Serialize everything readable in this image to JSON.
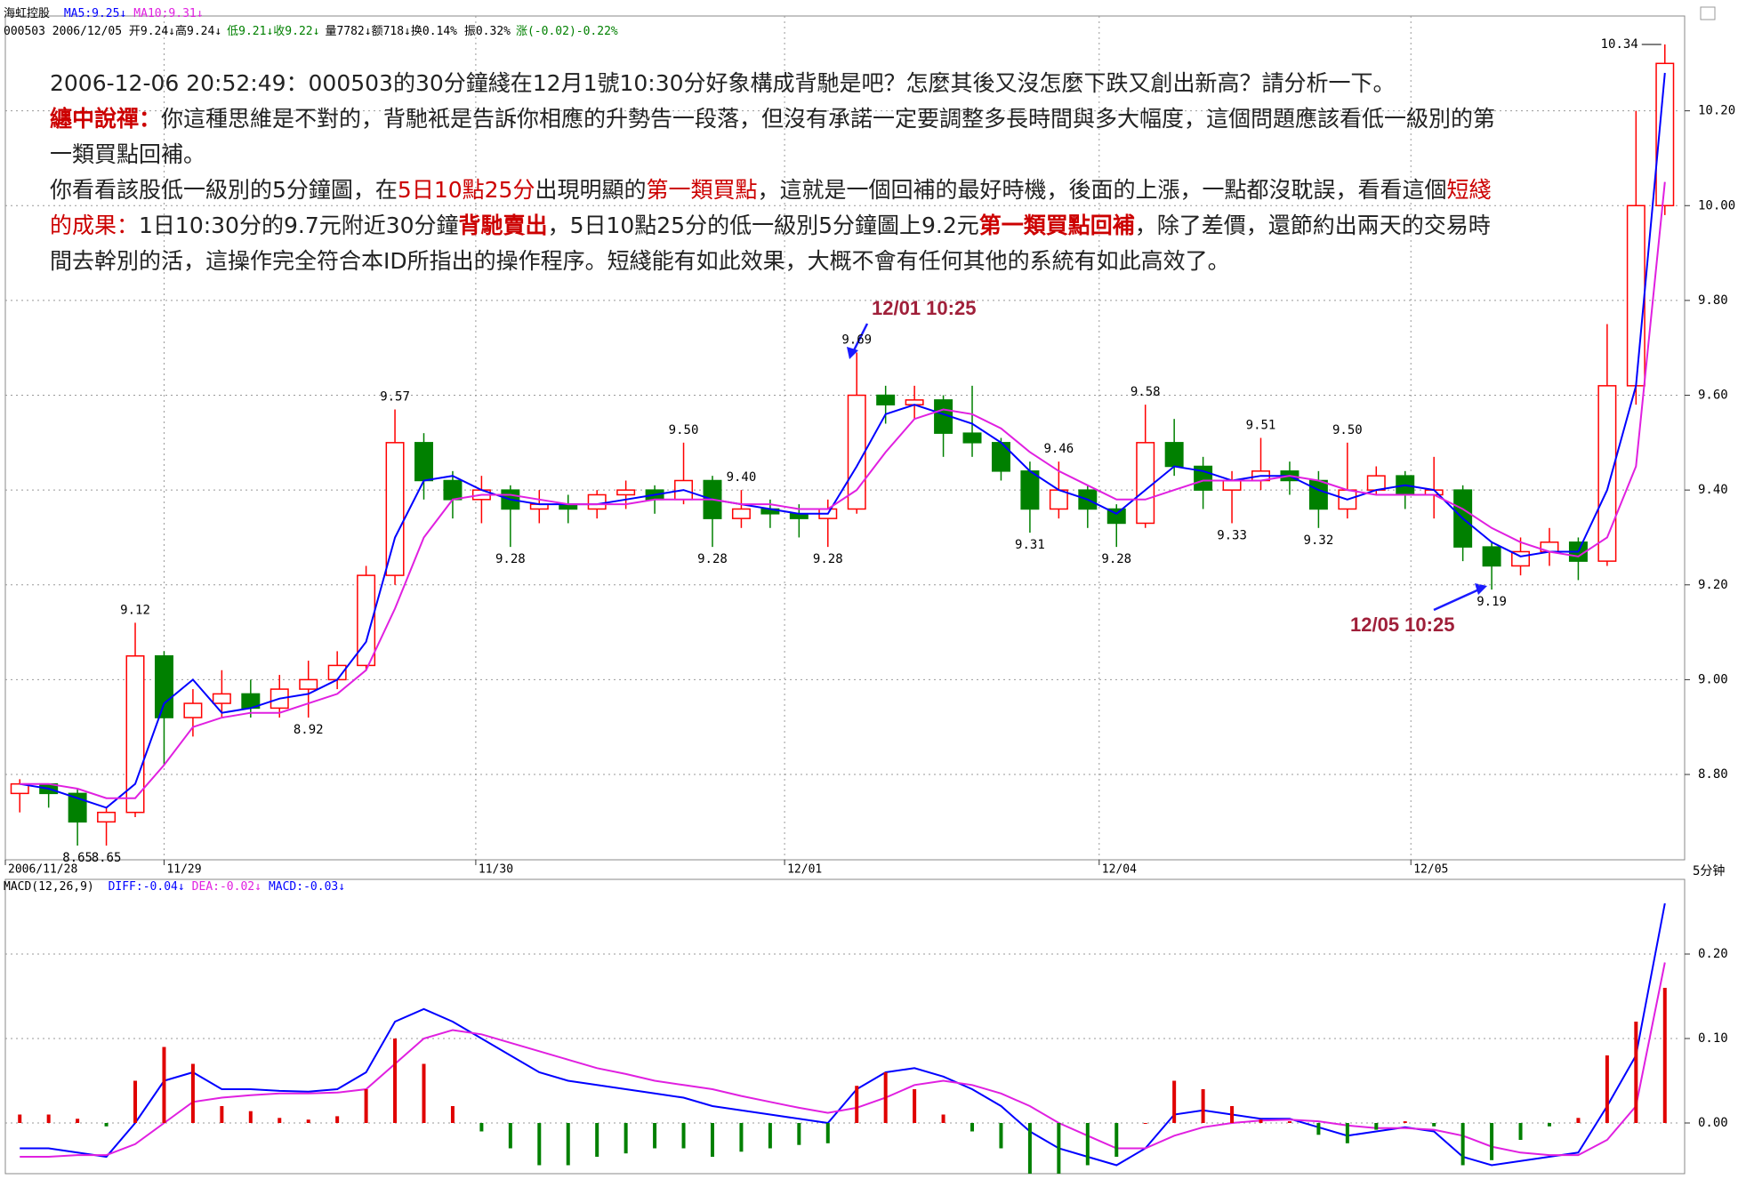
{
  "header": {
    "stock": "海虹控股",
    "info": [
      {
        "text": "000503 2006/12/05 开9.24↓高9.24↓",
        "color": "#000000"
      },
      {
        "text": "低9.21↓收9.22↓",
        "color": "#008000"
      },
      {
        "text": "量7782↓额718↓换0.14% 振0.32%",
        "color": "#000000"
      },
      {
        "text": "涨(-0.02)-0.22%",
        "color": "#008000"
      }
    ],
    "period": "5分钟"
  },
  "note": [
    [
      {
        "text": "2006-12-06 20:52:49：000503的30分鐘綫在12月1號10:30分好象構成背馳是吧？怎麼其後又沒怎麼下跌又創出新高？請分析一下。",
        "color": "#222222",
        "bold": false
      }
    ],
    [
      {
        "text": "纏中說禪：",
        "color": "#cc0000",
        "bold": true
      },
      {
        "text": "你這種思維是不對的，背馳衹是告訴你相應的升勢告一段落，但沒有承諾一定要調整多長時間與多大幅度，這個問題應該看低一級別的第一類買點回補。",
        "color": "#222222",
        "bold": false
      }
    ],
    [
      {
        "text": "你看看該股低一級別的5分鐘圖，在",
        "color": "#222222",
        "bold": false
      },
      {
        "text": "5日10點25分",
        "color": "#cc0000",
        "bold": false
      },
      {
        "text": "出現明顯的",
        "color": "#222222",
        "bold": false
      },
      {
        "text": "第一類買點",
        "color": "#cc0000",
        "bold": false
      },
      {
        "text": "，這就是一個回補的最好時機，後面的上漲，一點都沒耽誤，看看這個",
        "color": "#222222",
        "bold": false
      },
      {
        "text": "短綫的成果：",
        "color": "#cc0000",
        "bold": false
      },
      {
        "text": "1日10:30分的9.7元附近30分鐘",
        "color": "#222222",
        "bold": false
      },
      {
        "text": "背馳賣出",
        "color": "#cc0000",
        "bold": true
      },
      {
        "text": "，5日10點25分的低一級別5分鐘圖上9.2元",
        "color": "#222222",
        "bold": false
      },
      {
        "text": "第一類買點回補",
        "color": "#cc0000",
        "bold": true
      },
      {
        "text": "，除了差價，還節約出兩天的交易時間去幹別的活，這操作完全符合本ID所指出的操作程序。短綫能有如此效果，大概不會有任何其他的系統有如此高效了。",
        "color": "#222222",
        "bold": false
      }
    ]
  ],
  "callouts": [
    "12/01 10:25",
    "12/05 10:25"
  ],
  "chart_data": [
    {
      "type": "candlestick",
      "up_color": "#ff0000",
      "down_color": "#008000",
      "grid": true,
      "open": [
        8.76,
        8.78,
        8.76,
        8.7,
        8.72,
        9.05,
        8.92,
        8.95,
        8.97,
        8.94,
        8.98,
        9.0,
        9.03,
        9.22,
        9.5,
        9.42,
        9.38,
        9.4,
        9.36,
        9.37,
        9.36,
        9.39,
        9.4,
        9.38,
        9.42,
        9.34,
        9.36,
        9.35,
        9.34,
        9.36,
        9.6,
        9.58,
        9.59,
        9.52,
        9.5,
        9.44,
        9.36,
        9.4,
        9.36,
        9.33,
        9.5,
        9.45,
        9.4,
        9.42,
        9.44,
        9.42,
        9.36,
        9.4,
        9.43,
        9.39,
        9.4,
        9.28,
        9.24,
        9.27,
        9.29,
        9.25,
        9.62,
        10.0
      ],
      "high": [
        8.79,
        8.78,
        8.77,
        8.73,
        9.12,
        9.06,
        8.98,
        9.02,
        9.0,
        9.01,
        9.04,
        9.06,
        9.24,
        9.57,
        9.52,
        9.44,
        9.43,
        9.41,
        9.4,
        9.39,
        9.4,
        9.42,
        9.41,
        9.5,
        9.43,
        9.4,
        9.38,
        9.37,
        9.38,
        9.69,
        9.62,
        9.62,
        9.6,
        9.62,
        9.51,
        9.46,
        9.46,
        9.41,
        9.37,
        9.58,
        9.55,
        9.47,
        9.44,
        9.51,
        9.46,
        9.44,
        9.5,
        9.45,
        9.44,
        9.47,
        9.41,
        9.29,
        9.3,
        9.32,
        9.3,
        9.75,
        10.2,
        10.34
      ],
      "low": [
        8.72,
        8.73,
        8.65,
        8.65,
        8.71,
        8.82,
        8.88,
        8.92,
        8.92,
        8.92,
        8.92,
        8.98,
        9.02,
        9.2,
        9.38,
        9.34,
        9.33,
        9.28,
        9.33,
        9.33,
        9.34,
        9.36,
        9.35,
        9.37,
        9.28,
        9.32,
        9.32,
        9.3,
        9.28,
        9.35,
        9.54,
        9.55,
        9.47,
        9.47,
        9.42,
        9.31,
        9.34,
        9.32,
        9.28,
        9.32,
        9.43,
        9.36,
        9.33,
        9.4,
        9.39,
        9.32,
        9.34,
        9.39,
        9.36,
        9.34,
        9.25,
        9.19,
        9.22,
        9.24,
        9.21,
        9.24,
        9.58,
        9.98
      ],
      "close": [
        8.78,
        8.76,
        8.7,
        8.72,
        9.05,
        8.92,
        8.95,
        8.97,
        8.94,
        8.98,
        9.0,
        9.03,
        9.22,
        9.5,
        9.42,
        9.38,
        9.4,
        9.36,
        9.37,
        9.36,
        9.39,
        9.4,
        9.38,
        9.42,
        9.34,
        9.36,
        9.35,
        9.34,
        9.36,
        9.6,
        9.58,
        9.59,
        9.52,
        9.5,
        9.44,
        9.36,
        9.4,
        9.36,
        9.33,
        9.5,
        9.45,
        9.4,
        9.42,
        9.44,
        9.42,
        9.36,
        9.4,
        9.43,
        9.39,
        9.4,
        9.28,
        9.24,
        9.27,
        9.29,
        9.25,
        9.62,
        10.0,
        10.3
      ],
      "series": [
        {
          "name": "MA5:9.25↓",
          "color": "#0000ff",
          "values": [
            8.78,
            8.77,
            8.75,
            8.73,
            8.78,
            8.95,
            9.0,
            8.93,
            8.94,
            8.96,
            8.97,
            9.0,
            9.08,
            9.3,
            9.42,
            9.43,
            9.4,
            9.38,
            9.37,
            9.37,
            9.37,
            9.38,
            9.39,
            9.4,
            9.38,
            9.37,
            9.36,
            9.35,
            9.35,
            9.45,
            9.56,
            9.58,
            9.56,
            9.54,
            9.5,
            9.44,
            9.4,
            9.38,
            9.35,
            9.4,
            9.45,
            9.44,
            9.42,
            9.43,
            9.43,
            9.4,
            9.38,
            9.4,
            9.41,
            9.4,
            9.34,
            9.29,
            9.26,
            9.27,
            9.27,
            9.4,
            9.62,
            10.28
          ]
        },
        {
          "name": "MA10:9.31↓",
          "color": "#e020e0",
          "values": [
            8.78,
            8.78,
            8.77,
            8.75,
            8.75,
            8.82,
            8.9,
            8.92,
            8.93,
            8.93,
            8.95,
            8.97,
            9.02,
            9.15,
            9.3,
            9.38,
            9.39,
            9.39,
            9.38,
            9.37,
            9.37,
            9.37,
            9.38,
            9.38,
            9.38,
            9.37,
            9.37,
            9.36,
            9.36,
            9.4,
            9.48,
            9.55,
            9.57,
            9.56,
            9.53,
            9.48,
            9.44,
            9.41,
            9.38,
            9.38,
            9.4,
            9.42,
            9.42,
            9.42,
            9.43,
            9.42,
            9.4,
            9.39,
            9.39,
            9.39,
            9.36,
            9.32,
            9.29,
            9.27,
            9.26,
            9.3,
            9.45,
            10.05
          ]
        }
      ],
      "xlim": [
        0,
        58
      ],
      "xticks": [
        {
          "value": 0,
          "label": "2006/11/28"
        },
        {
          "value": 5.5,
          "label": "11/29"
        },
        {
          "value": 16.3,
          "label": "11/30"
        },
        {
          "value": 27,
          "label": "12/01"
        },
        {
          "value": 37.9,
          "label": "12/04"
        },
        {
          "value": 48.7,
          "label": "12/05"
        }
      ],
      "ylim": [
        8.62,
        10.4
      ],
      "yticks": [
        {
          "value": 8.8,
          "label": "8.80"
        },
        {
          "value": 9,
          "label": "9.00"
        },
        {
          "value": 9.2,
          "label": "9.20"
        },
        {
          "value": 9.4,
          "label": "9.40"
        },
        {
          "value": 9.6,
          "label": "9.60"
        },
        {
          "value": 9.8,
          "label": "9.80"
        },
        {
          "value": 10,
          "label": "10.00"
        },
        {
          "value": 10.2,
          "label": "10.20"
        }
      ],
      "annotations": [
        {
          "x": 2,
          "value": 8.65,
          "label": "8.65"
        },
        {
          "x": 3,
          "value": 8.65,
          "label": "8.65"
        },
        {
          "x": 4,
          "value": 9.12,
          "label": "9.12"
        },
        {
          "x": 10,
          "value": 8.92,
          "label": "8.92"
        },
        {
          "x": 13,
          "value": 9.57,
          "label": "9.57"
        },
        {
          "x": 17,
          "value": 9.28,
          "label": "9.28"
        },
        {
          "x": 23,
          "value": 9.5,
          "label": "9.50"
        },
        {
          "x": 24,
          "value": 9.28,
          "label": "9.28"
        },
        {
          "x": 25,
          "value": 9.4,
          "label": "9.40"
        },
        {
          "x": 28,
          "value": 9.28,
          "label": "9.28"
        },
        {
          "x": 29,
          "value": 9.69,
          "label": "9.69"
        },
        {
          "x": 35,
          "value": 9.31,
          "label": "9.31"
        },
        {
          "x": 36,
          "value": 9.46,
          "label": "9.46"
        },
        {
          "x": 38,
          "value": 9.28,
          "label": "9.28"
        },
        {
          "x": 39,
          "value": 9.58,
          "label": "9.58"
        },
        {
          "x": 42,
          "value": 9.33,
          "label": "9.33"
        },
        {
          "x": 43,
          "value": 9.51,
          "label": "9.51"
        },
        {
          "x": 45,
          "value": 9.32,
          "label": "9.32"
        },
        {
          "x": 46,
          "value": 9.5,
          "label": "9.50"
        },
        {
          "x": 51,
          "value": 9.19,
          "label": "9.19"
        },
        {
          "x": 57,
          "value": 10.34,
          "label": "10.34"
        }
      ]
    },
    {
      "type": "macd",
      "title": "MACD(12,26,9)",
      "grid": true,
      "series": [
        {
          "name": "DIFF:-0.04↓",
          "color": "#0000ff",
          "kind": "line",
          "values": [
            -0.03,
            -0.03,
            -0.035,
            -0.04,
            0.0,
            0.05,
            0.06,
            0.04,
            0.04,
            0.038,
            0.037,
            0.04,
            0.06,
            0.12,
            0.135,
            0.12,
            0.1,
            0.08,
            0.06,
            0.05,
            0.045,
            0.04,
            0.035,
            0.03,
            0.02,
            0.015,
            0.01,
            0.005,
            0.0,
            0.04,
            0.06,
            0.065,
            0.055,
            0.04,
            0.02,
            -0.01,
            -0.03,
            -0.04,
            -0.05,
            -0.03,
            0.01,
            0.015,
            0.01,
            0.005,
            0.005,
            -0.005,
            -0.015,
            -0.01,
            -0.005,
            -0.01,
            -0.04,
            -0.05,
            -0.045,
            -0.04,
            -0.035,
            0.02,
            0.08,
            0.26
          ]
        },
        {
          "name": "DEA:-0.02↓",
          "color": "#e020e0",
          "kind": "line",
          "values": [
            -0.04,
            -0.04,
            -0.038,
            -0.038,
            -0.025,
            0.0,
            0.025,
            0.03,
            0.033,
            0.035,
            0.035,
            0.036,
            0.04,
            0.07,
            0.1,
            0.11,
            0.105,
            0.095,
            0.085,
            0.075,
            0.065,
            0.058,
            0.05,
            0.045,
            0.04,
            0.032,
            0.025,
            0.018,
            0.012,
            0.018,
            0.03,
            0.045,
            0.05,
            0.045,
            0.035,
            0.02,
            0.0,
            -0.015,
            -0.03,
            -0.03,
            -0.015,
            -0.005,
            0.0,
            0.003,
            0.004,
            0.002,
            -0.003,
            -0.006,
            -0.006,
            -0.008,
            -0.015,
            -0.028,
            -0.035,
            -0.038,
            -0.038,
            -0.02,
            0.02,
            0.19
          ]
        },
        {
          "name": "MACD:-0.03↓",
          "color": "#0000ff",
          "kind": "bar",
          "up_color": "#e00000",
          "down_color": "#008000",
          "values": [
            0.01,
            0.01,
            0.005,
            -0.004,
            0.05,
            0.09,
            0.07,
            0.02,
            0.014,
            0.006,
            0.004,
            0.008,
            0.04,
            0.1,
            0.07,
            0.02,
            -0.01,
            -0.03,
            -0.05,
            -0.05,
            -0.04,
            -0.036,
            -0.03,
            -0.03,
            -0.04,
            -0.034,
            -0.03,
            -0.026,
            -0.024,
            0.044,
            0.06,
            0.04,
            0.01,
            -0.01,
            -0.03,
            -0.06,
            -0.06,
            -0.05,
            -0.04,
            0.0,
            0.05,
            0.04,
            0.02,
            0.004,
            0.002,
            -0.014,
            -0.024,
            -0.008,
            0.002,
            -0.004,
            -0.05,
            -0.044,
            -0.02,
            -0.004,
            0.006,
            0.08,
            0.12,
            0.16
          ]
        }
      ],
      "xlim": [
        0,
        58
      ],
      "ylim": [
        -0.06,
        0.28
      ],
      "yticks": [
        {
          "value": 0,
          "label": "0.00"
        },
        {
          "value": 0.1,
          "label": "0.10"
        },
        {
          "value": 0.2,
          "label": "0.20"
        }
      ]
    }
  ]
}
